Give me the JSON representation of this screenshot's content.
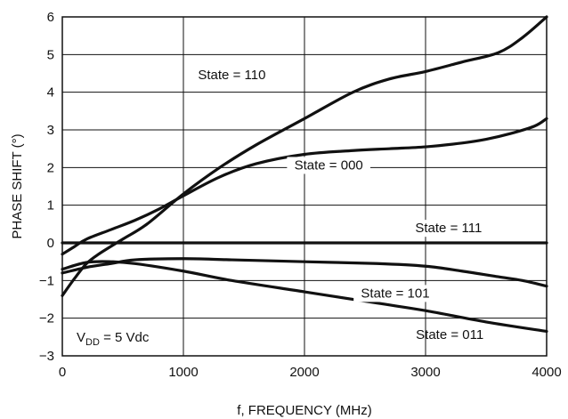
{
  "chart_data": {
    "type": "line",
    "title": "",
    "xlabel": "f, FREQUENCY (MHz)",
    "ylabel": "PHASE SHIFT (°)",
    "xlim": [
      0,
      4000
    ],
    "ylim": [
      -3,
      6
    ],
    "x_ticks": [
      "0",
      "1000",
      "2000",
      "3000",
      "4000"
    ],
    "y_ticks": [
      "−3",
      "−2",
      "−1",
      "0",
      "1",
      "2",
      "3",
      "4",
      "5",
      "6"
    ],
    "grid": true,
    "annotation": {
      "prefix": "V",
      "subscript": "DD",
      "suffix": " = 5 Vdc"
    },
    "series": [
      {
        "name": "State = 110",
        "x": [
          0,
          100,
          200,
          300,
          500,
          700,
          1000,
          1300,
          1600,
          2000,
          2400,
          2700,
          3000,
          3300,
          3600,
          3800,
          4000
        ],
        "y": [
          -1.4,
          -0.95,
          -0.55,
          -0.3,
          0.1,
          0.5,
          1.3,
          2.0,
          2.6,
          3.3,
          4.0,
          4.35,
          4.55,
          4.8,
          5.05,
          5.45,
          6.0
        ]
      },
      {
        "name": "State = 000",
        "x": [
          0,
          100,
          200,
          400,
          600,
          800,
          1000,
          1300,
          1600,
          2000,
          2400,
          2700,
          3000,
          3300,
          3500,
          3700,
          3900,
          4000
        ],
        "y": [
          -0.3,
          -0.1,
          0.1,
          0.35,
          0.6,
          0.9,
          1.25,
          1.75,
          2.1,
          2.35,
          2.45,
          2.5,
          2.55,
          2.65,
          2.75,
          2.9,
          3.1,
          3.3
        ]
      },
      {
        "name": "State = 111",
        "x": [
          0,
          1000,
          2000,
          3000,
          4000
        ],
        "y": [
          0,
          0,
          0,
          0,
          0
        ]
      },
      {
        "name": "State = 101",
        "x": [
          0,
          200,
          400,
          600,
          1000,
          1400,
          2000,
          2600,
          3000,
          3300,
          3600,
          3800,
          4000
        ],
        "y": [
          -0.8,
          -0.65,
          -0.55,
          -0.45,
          -0.42,
          -0.45,
          -0.5,
          -0.55,
          -0.62,
          -0.75,
          -0.9,
          -1.0,
          -1.15
        ]
      },
      {
        "name": "State = 011",
        "x": [
          0,
          200,
          400,
          600,
          1000,
          1400,
          2000,
          2600,
          3000,
          3500,
          4000
        ],
        "y": [
          -0.7,
          -0.52,
          -0.5,
          -0.55,
          -0.75,
          -1.0,
          -1.3,
          -1.6,
          -1.8,
          -2.1,
          -2.35
        ]
      }
    ],
    "labels": [
      {
        "text": "State = 110",
        "x": 1400,
        "y": 4.35,
        "anchor": "middle",
        "bg": false
      },
      {
        "text": "State = 000",
        "x": 2200,
        "y": 1.95,
        "anchor": "middle",
        "bg": true
      },
      {
        "text": "State = 111",
        "x": 3190,
        "y": 0.28,
        "anchor": "middle",
        "bg": true
      },
      {
        "text": "State = 101",
        "x": 2750,
        "y": -1.45,
        "anchor": "middle",
        "bg": true
      },
      {
        "text": "State = 011",
        "x": 3200,
        "y": -2.55,
        "anchor": "middle",
        "bg": false
      }
    ]
  }
}
